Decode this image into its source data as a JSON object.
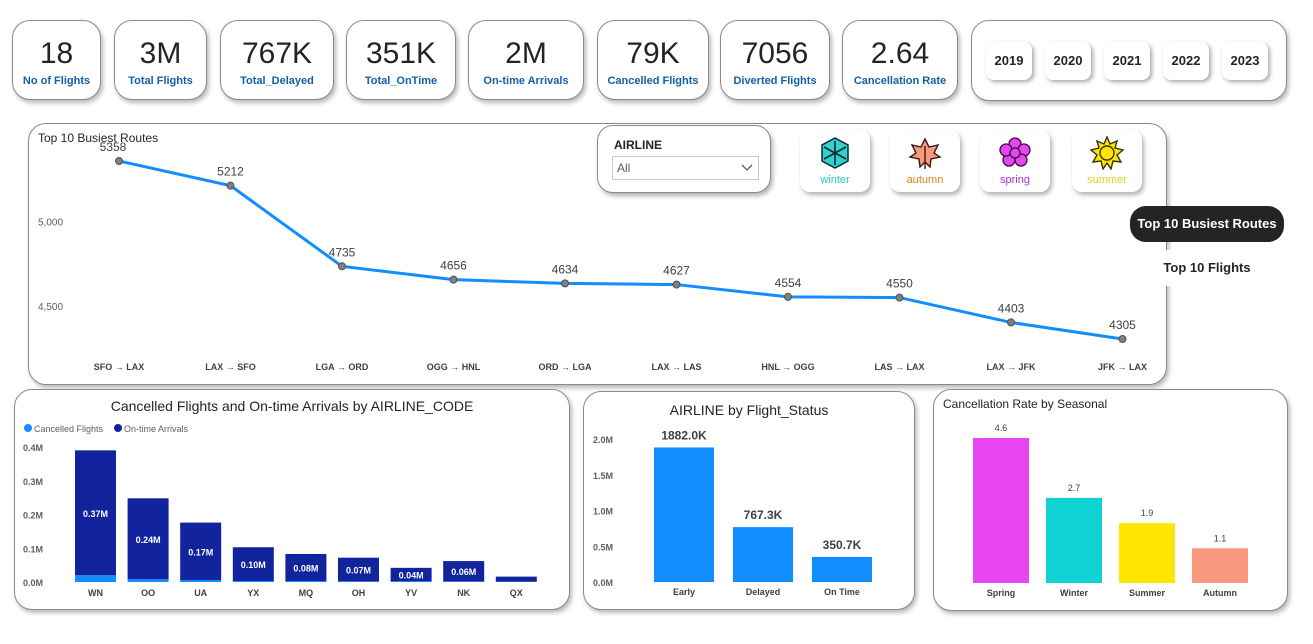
{
  "kpis": [
    {
      "value": "18",
      "label": "No of Flights"
    },
    {
      "value": "3M",
      "label": "Total Flights"
    },
    {
      "value": "767K",
      "label": "Total_Delayed"
    },
    {
      "value": "351K",
      "label": "Total_OnTime"
    },
    {
      "value": "2M",
      "label": "On-time Arrivals"
    },
    {
      "value": "79K",
      "label": "Cancelled Flights"
    },
    {
      "value": "7056",
      "label": "Diverted Flights"
    },
    {
      "value": "2.64",
      "label": "Cancellation Rate"
    }
  ],
  "years": [
    "2019",
    "2020",
    "2021",
    "2022",
    "2023"
  ],
  "slicer": {
    "label": "AIRLINE",
    "value": "All"
  },
  "seasons": [
    {
      "name": "winter",
      "color": "#2bc4c4",
      "icon": "snowflake-icon"
    },
    {
      "name": "autumn",
      "color": "#e0821f",
      "icon": "leaf-icon"
    },
    {
      "name": "spring",
      "color": "#b52bd6",
      "icon": "flower-icon"
    },
    {
      "name": "summer",
      "color": "#e5d21a",
      "icon": "sun-icon"
    }
  ],
  "nav": {
    "active": "Top 10 Busiest Routes",
    "inactive": "Top 10 Flights"
  },
  "chart_data": [
    {
      "type": "line",
      "title": "Top 10 Busiest Routes",
      "categories": [
        "SFO → LAX",
        "LAX → SFO",
        "LGA → ORD",
        "OGG → HNL",
        "ORD → LGA",
        "LAX → LAS",
        "HNL → OGG",
        "LAS → LAX",
        "LAX → JFK",
        "JFK → LAX"
      ],
      "values": [
        5358,
        5212,
        4735,
        4656,
        4634,
        4627,
        4554,
        4550,
        4403,
        4305
      ],
      "yticks": [
        "5,000",
        "4,500"
      ],
      "ylim": [
        4250,
        5400
      ],
      "color": "#118dff"
    },
    {
      "type": "bar",
      "title": "Cancelled Flights and On-time Arrivals by AIRLINE_CODE",
      "categories": [
        "WN",
        "OO",
        "UA",
        "YX",
        "MQ",
        "OH",
        "YV",
        "NK",
        "QX"
      ],
      "series": [
        {
          "name": "Cancelled Flights",
          "color": "#118dff",
          "values": [
            0.02,
            0.008,
            0.006,
            0.003,
            0.003,
            0.002,
            0.002,
            0.002,
            0.001
          ]
        },
        {
          "name": "On-time Arrivals",
          "color": "#12239e",
          "values": [
            0.37,
            0.24,
            0.17,
            0.1,
            0.08,
            0.07,
            0.04,
            0.06,
            0.015
          ]
        }
      ],
      "data_labels": [
        "0.37M",
        "0.24M",
        "0.17M",
        "0.10M",
        "0.08M",
        "0.07M",
        "0.04M",
        "0.06M",
        ""
      ],
      "yticks": [
        "0.4M",
        "0.3M",
        "0.2M",
        "0.1M",
        "0.0M"
      ],
      "ylim": [
        0,
        0.4
      ]
    },
    {
      "type": "bar",
      "title": "AIRLINE by Flight_Status",
      "categories": [
        "Early",
        "Delayed",
        "On Time"
      ],
      "values": [
        1882.0,
        767.3,
        350.7
      ],
      "data_labels": [
        "1882.0K",
        "767.3K",
        "350.7K"
      ],
      "yticks": [
        "2.0M",
        "1.5M",
        "1.0M",
        "0.5M",
        "0.0M"
      ],
      "ylim": [
        0,
        2000
      ],
      "color": "#118dff"
    },
    {
      "type": "bar",
      "title": "Cancellation Rate by Seasonal",
      "categories": [
        "Spring",
        "Winter",
        "Summer",
        "Autumn"
      ],
      "values": [
        4.6,
        2.7,
        1.9,
        1.1
      ],
      "data_labels": [
        "4.6",
        "2.7",
        "1.9",
        "1.1"
      ],
      "colors": [
        "#e645f0",
        "#0fd2d2",
        "#ffe600",
        "#fa9980"
      ],
      "ylim": [
        0,
        4.6
      ]
    }
  ]
}
